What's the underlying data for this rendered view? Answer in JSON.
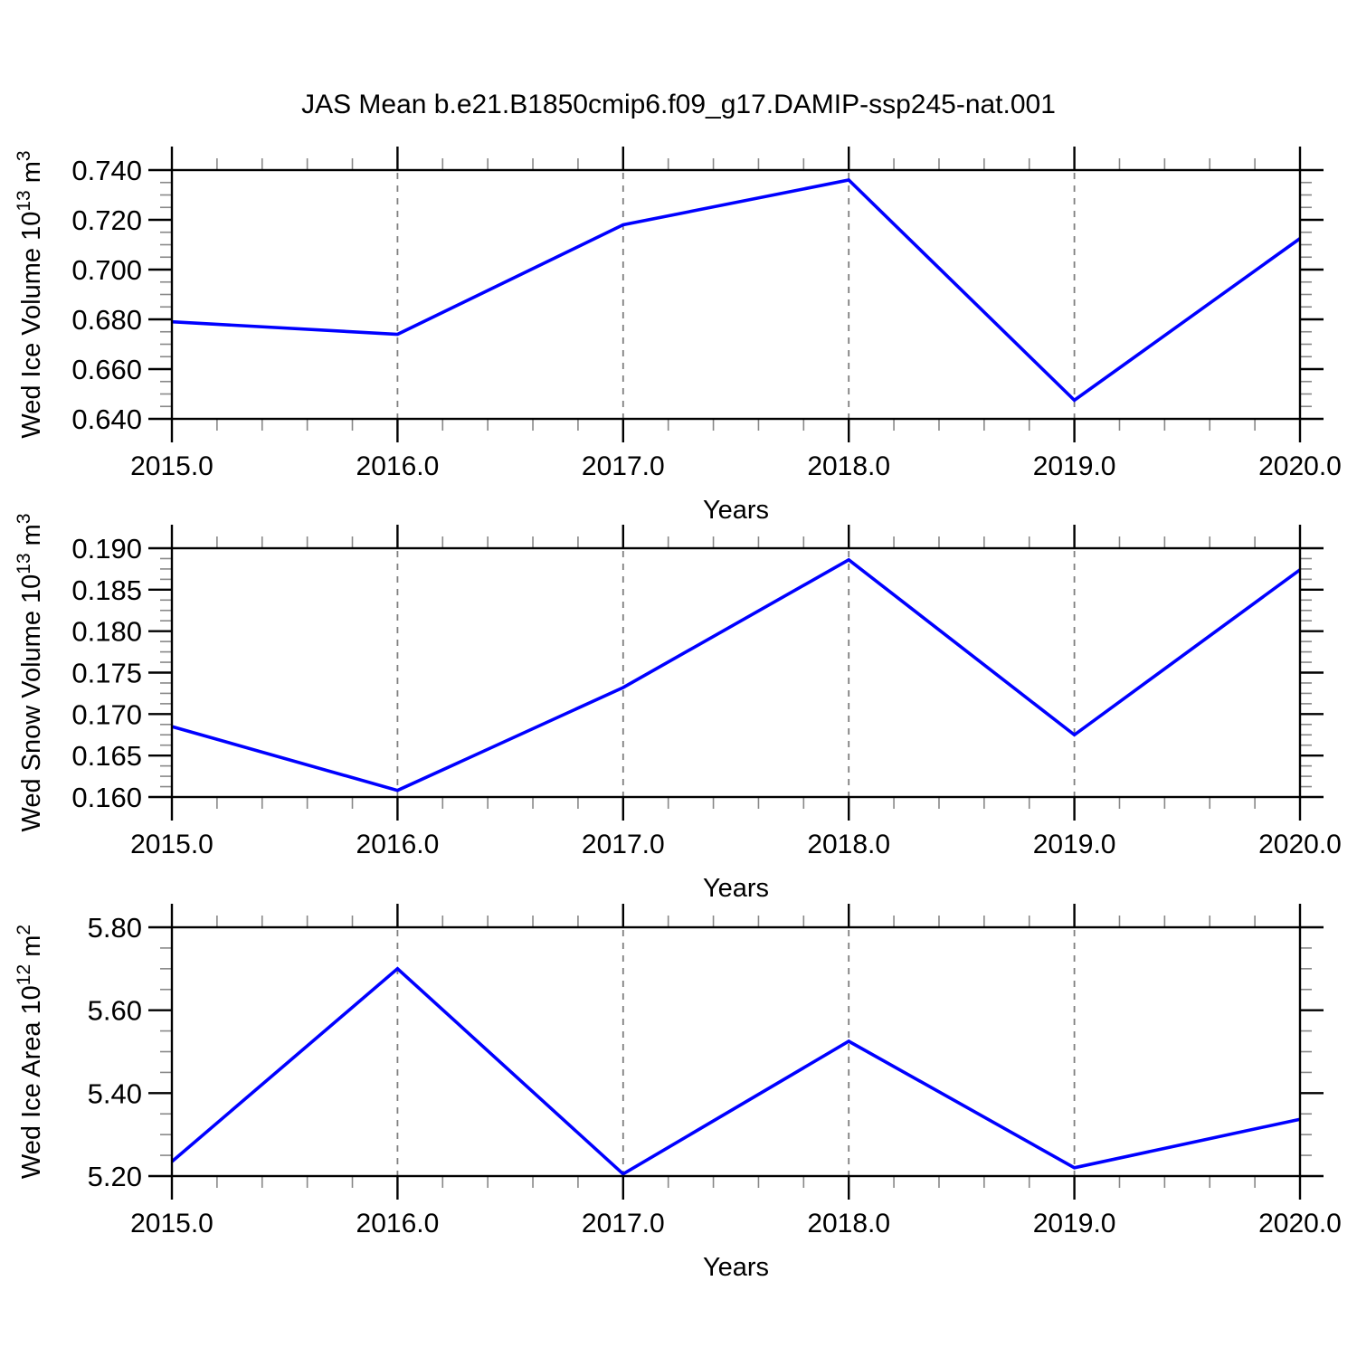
{
  "title": "JAS Mean b.e21.B1850cmip6.f09_g17.DAMIP-ssp245-nat.001",
  "chart_data": [
    {
      "type": "line",
      "name": "ice-volume",
      "xlabel": "Years",
      "ylabel": "Wed Ice Volume 10^13 m^3",
      "x": [
        2015,
        2016,
        2017,
        2018,
        2019,
        2020
      ],
      "values": [
        0.679,
        0.674,
        0.718,
        0.736,
        0.6475,
        0.7125
      ],
      "xlim": [
        2015,
        2020
      ],
      "ylim": [
        0.64,
        0.74
      ],
      "xticks": [
        2015,
        2016,
        2017,
        2018,
        2019,
        2020
      ],
      "xtick_labels": [
        "2015.0",
        "2016.0",
        "2017.0",
        "2018.0",
        "2019.0",
        "2020.0"
      ],
      "yticks": [
        0.64,
        0.66,
        0.68,
        0.7,
        0.72,
        0.74
      ],
      "ytick_labels": [
        "0.640",
        "0.660",
        "0.680",
        "0.700",
        "0.720",
        "0.740"
      ],
      "x_minor_step": 0.2,
      "y_minor_step": 0.005,
      "gridline_x": [
        2016,
        2017,
        2018,
        2019
      ],
      "line_color": "#0000ff",
      "grid_color": "#7f7f7f",
      "axis_color": "#000000",
      "grid_style": "dashed",
      "legend": null
    },
    {
      "type": "line",
      "name": "snow-volume",
      "xlabel": "Years",
      "ylabel": "Wed Snow Volume 10^13 m^3",
      "x": [
        2015,
        2016,
        2017,
        2018,
        2019,
        2020
      ],
      "values": [
        0.1685,
        0.1608,
        0.1732,
        0.1886,
        0.1675,
        0.1874
      ],
      "xlim": [
        2015,
        2020
      ],
      "ylim": [
        0.16,
        0.19
      ],
      "xticks": [
        2015,
        2016,
        2017,
        2018,
        2019,
        2020
      ],
      "xtick_labels": [
        "2015.0",
        "2016.0",
        "2017.0",
        "2018.0",
        "2019.0",
        "2020.0"
      ],
      "yticks": [
        0.16,
        0.165,
        0.17,
        0.175,
        0.18,
        0.185,
        0.19
      ],
      "ytick_labels": [
        "0.160",
        "0.165",
        "0.170",
        "0.175",
        "0.180",
        "0.185",
        "0.190"
      ],
      "x_minor_step": 0.2,
      "y_minor_step": 0.00125,
      "gridline_x": [
        2016,
        2017,
        2018,
        2019
      ],
      "line_color": "#0000ff",
      "grid_color": "#7f7f7f",
      "axis_color": "#000000",
      "grid_style": "dashed",
      "legend": null
    },
    {
      "type": "line",
      "name": "ice-area",
      "xlabel": "Years",
      "ylabel": "Wed Ice Area 10^12 m^2",
      "x": [
        2015,
        2016,
        2017,
        2018,
        2019,
        2020
      ],
      "values": [
        5.235,
        5.7,
        5.205,
        5.525,
        5.22,
        5.337
      ],
      "xlim": [
        2015,
        2020
      ],
      "ylim": [
        5.2,
        5.8
      ],
      "xticks": [
        2015,
        2016,
        2017,
        2018,
        2019,
        2020
      ],
      "xtick_labels": [
        "2015.0",
        "2016.0",
        "2017.0",
        "2018.0",
        "2019.0",
        "2020.0"
      ],
      "yticks": [
        5.2,
        5.4,
        5.6,
        5.8
      ],
      "ytick_labels": [
        "5.20",
        "5.40",
        "5.60",
        "5.80"
      ],
      "x_minor_step": 0.2,
      "y_minor_step": 0.05,
      "gridline_x": [
        2016,
        2017,
        2018,
        2019
      ],
      "line_color": "#0000ff",
      "grid_color": "#7f7f7f",
      "axis_color": "#000000",
      "grid_style": "dashed",
      "legend": null
    }
  ]
}
